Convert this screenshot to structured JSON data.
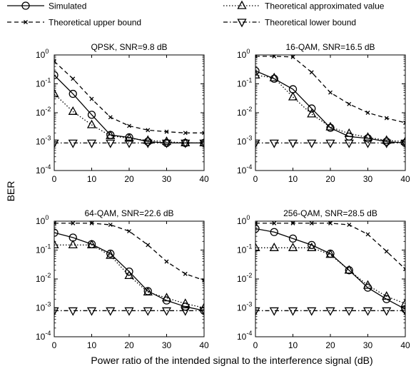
{
  "figure": {
    "ylabel": "BER",
    "xlabel": "Power ratio of the intended signal to the interference signal (dB)"
  },
  "legend": {
    "entries": [
      {
        "label": "Simulated",
        "series": "simulated"
      },
      {
        "label": "Theoretical approximated value",
        "series": "approx"
      },
      {
        "label": "Theoretical upper bound",
        "series": "upper"
      },
      {
        "label": "Theoretical lower bound",
        "series": "lower"
      }
    ]
  },
  "styles": {
    "simulated": {
      "dash": "",
      "marker": "circle"
    },
    "approx": {
      "dash": "1.5,2.5",
      "marker": "triangle-up"
    },
    "upper": {
      "dash": "6,4",
      "marker": "x"
    },
    "lower": {
      "dash": "6,3,1.5,3",
      "marker": "triangle-down"
    }
  },
  "chart_data": [
    {
      "type": "line",
      "title": "QPSK, SNR=9.8 dB",
      "xlabel": "Power ratio of the intended signal to the interference signal (dB)",
      "ylabel": "BER",
      "yscale": "log",
      "xlim": [
        0,
        40
      ],
      "ylim": [
        0.0001,
        1
      ],
      "xticks": [
        0,
        10,
        20,
        30,
        40
      ],
      "yticks": [
        {
          "value": 1,
          "exp": "0"
        },
        {
          "value": 0.1,
          "exp": "-1"
        },
        {
          "value": 0.01,
          "exp": "-2"
        },
        {
          "value": 0.001,
          "exp": "-3"
        },
        {
          "value": 0.0001,
          "exp": "-4"
        }
      ],
      "grid": false,
      "series": [
        {
          "key": "simulated",
          "name": "Simulated",
          "x": [
            0,
            5,
            10,
            15,
            20,
            25,
            30,
            35,
            40
          ],
          "y": [
            0.2,
            0.045,
            0.0085,
            0.0017,
            0.0014,
            0.001,
            0.0009,
            0.0009,
            0.0009
          ]
        },
        {
          "key": "approx",
          "name": "Theoretical approximated value",
          "x": [
            0,
            5,
            10,
            15,
            20,
            25,
            30,
            35,
            40
          ],
          "y": [
            0.045,
            0.011,
            0.0038,
            0.0016,
            0.0013,
            0.0011,
            0.001,
            0.0009,
            0.0009
          ]
        },
        {
          "key": "upper",
          "name": "Theoretical upper bound",
          "x": [
            0,
            5,
            10,
            15,
            20,
            25,
            30,
            35,
            40
          ],
          "y": [
            0.6,
            0.15,
            0.03,
            0.007,
            0.0035,
            0.0025,
            0.0022,
            0.002,
            0.002
          ]
        },
        {
          "key": "lower",
          "name": "Theoretical lower bound",
          "x": [
            0,
            5,
            10,
            15,
            20,
            25,
            30,
            35,
            40
          ],
          "y": [
            0.0009,
            0.0009,
            0.0009,
            0.0009,
            0.0009,
            0.0009,
            0.0009,
            0.0009,
            0.0009
          ]
        }
      ]
    },
    {
      "type": "line",
      "title": "16-QAM, SNR=16.5 dB",
      "xlabel": "Power ratio of the intended signal to the interference signal (dB)",
      "ylabel": "BER",
      "yscale": "log",
      "xlim": [
        0,
        40
      ],
      "ylim": [
        0.0001,
        1
      ],
      "xticks": [
        0,
        10,
        20,
        30,
        40
      ],
      "yticks": [
        {
          "value": 1,
          "exp": "0"
        },
        {
          "value": 0.1,
          "exp": "-1"
        },
        {
          "value": 0.01,
          "exp": "-2"
        },
        {
          "value": 0.001,
          "exp": "-3"
        },
        {
          "value": 0.0001,
          "exp": "-4"
        }
      ],
      "grid": false,
      "series": [
        {
          "key": "simulated",
          "name": "Simulated",
          "x": [
            0,
            5,
            10,
            15,
            20,
            25,
            30,
            35,
            40
          ],
          "y": [
            0.28,
            0.15,
            0.065,
            0.014,
            0.003,
            0.0015,
            0.0013,
            0.001,
            0.0009
          ]
        },
        {
          "key": "approx",
          "name": "Theoretical approximated value",
          "x": [
            0,
            5,
            10,
            15,
            20,
            25,
            30,
            35,
            40
          ],
          "y": [
            0.2,
            0.16,
            0.035,
            0.009,
            0.0032,
            0.0019,
            0.0014,
            0.0011,
            0.001
          ]
        },
        {
          "key": "upper",
          "name": "Theoretical upper bound",
          "x": [
            0,
            5,
            10,
            15,
            20,
            25,
            30,
            35,
            40
          ],
          "y": [
            0.9,
            0.9,
            0.85,
            0.25,
            0.05,
            0.02,
            0.01,
            0.0065,
            0.0045
          ]
        },
        {
          "key": "lower",
          "name": "Theoretical lower bound",
          "x": [
            0,
            5,
            10,
            15,
            20,
            25,
            30,
            35,
            40
          ],
          "y": [
            0.0009,
            0.0009,
            0.0009,
            0.0009,
            0.0009,
            0.0009,
            0.0009,
            0.0009,
            0.0009
          ]
        }
      ]
    },
    {
      "type": "line",
      "title": "64-QAM, SNR=22.6 dB",
      "xlabel": "Power ratio of the intended signal to the interference signal (dB)",
      "ylabel": "BER",
      "yscale": "log",
      "xlim": [
        0,
        40
      ],
      "ylim": [
        0.0001,
        1
      ],
      "xticks": [
        0,
        10,
        20,
        30,
        40
      ],
      "yticks": [
        {
          "value": 1,
          "exp": "0"
        },
        {
          "value": 0.1,
          "exp": "-1"
        },
        {
          "value": 0.01,
          "exp": "-2"
        },
        {
          "value": 0.001,
          "exp": "-3"
        },
        {
          "value": 0.0001,
          "exp": "-4"
        }
      ],
      "grid": false,
      "series": [
        {
          "key": "simulated",
          "name": "Simulated",
          "x": [
            0,
            5,
            10,
            15,
            20,
            25,
            30,
            35,
            40
          ],
          "y": [
            0.4,
            0.27,
            0.16,
            0.075,
            0.018,
            0.0038,
            0.0018,
            0.0011,
            0.0008
          ]
        },
        {
          "key": "approx",
          "name": "Theoretical approximated value",
          "x": [
            0,
            5,
            10,
            15,
            20,
            25,
            30,
            35,
            40
          ],
          "y": [
            0.15,
            0.15,
            0.15,
            0.065,
            0.013,
            0.0035,
            0.0022,
            0.0014,
            0.001
          ]
        },
        {
          "key": "upper",
          "name": "Theoretical upper bound",
          "x": [
            0,
            5,
            10,
            15,
            20,
            25,
            30,
            35,
            40
          ],
          "y": [
            0.85,
            0.85,
            0.85,
            0.75,
            0.45,
            0.15,
            0.04,
            0.015,
            0.009
          ]
        },
        {
          "key": "lower",
          "name": "Theoretical lower bound",
          "x": [
            0,
            5,
            10,
            15,
            20,
            25,
            30,
            35,
            40
          ],
          "y": [
            0.0008,
            0.0008,
            0.0008,
            0.0008,
            0.0008,
            0.0008,
            0.0008,
            0.0008,
            0.0008
          ]
        }
      ]
    },
    {
      "type": "line",
      "title": "256-QAM, SNR=28.5 dB",
      "xlabel": "Power ratio of the intended signal to the interference signal (dB)",
      "ylabel": "BER",
      "yscale": "log",
      "xlim": [
        0,
        40
      ],
      "ylim": [
        0.0001,
        1
      ],
      "xticks": [
        0,
        10,
        20,
        30,
        40
      ],
      "yticks": [
        {
          "value": 1,
          "exp": "0"
        },
        {
          "value": 0.1,
          "exp": "-1"
        },
        {
          "value": 0.01,
          "exp": "-2"
        },
        {
          "value": 0.001,
          "exp": "-3"
        },
        {
          "value": 0.0001,
          "exp": "-4"
        }
      ],
      "grid": false,
      "series": [
        {
          "key": "simulated",
          "name": "Simulated",
          "x": [
            0,
            5,
            10,
            15,
            20,
            25,
            30,
            35,
            40
          ],
          "y": [
            0.55,
            0.42,
            0.25,
            0.15,
            0.075,
            0.02,
            0.005,
            0.002,
            0.0009
          ]
        },
        {
          "key": "approx",
          "name": "Theoretical approximated value",
          "x": [
            0,
            5,
            10,
            15,
            20,
            25,
            30,
            35,
            40
          ],
          "y": [
            0.12,
            0.12,
            0.12,
            0.12,
            0.07,
            0.02,
            0.006,
            0.0025,
            0.0014
          ]
        },
        {
          "key": "upper",
          "name": "Theoretical upper bound",
          "x": [
            0,
            5,
            10,
            15,
            20,
            25,
            30,
            35,
            40
          ],
          "y": [
            0.85,
            0.85,
            0.85,
            0.85,
            0.85,
            0.75,
            0.35,
            0.09,
            0.022
          ]
        },
        {
          "key": "lower",
          "name": "Theoretical lower bound",
          "x": [
            0,
            5,
            10,
            15,
            20,
            25,
            30,
            35,
            40
          ],
          "y": [
            0.0008,
            0.0008,
            0.0008,
            0.0008,
            0.0008,
            0.0008,
            0.0008,
            0.0008,
            0.0008
          ]
        }
      ]
    }
  ]
}
